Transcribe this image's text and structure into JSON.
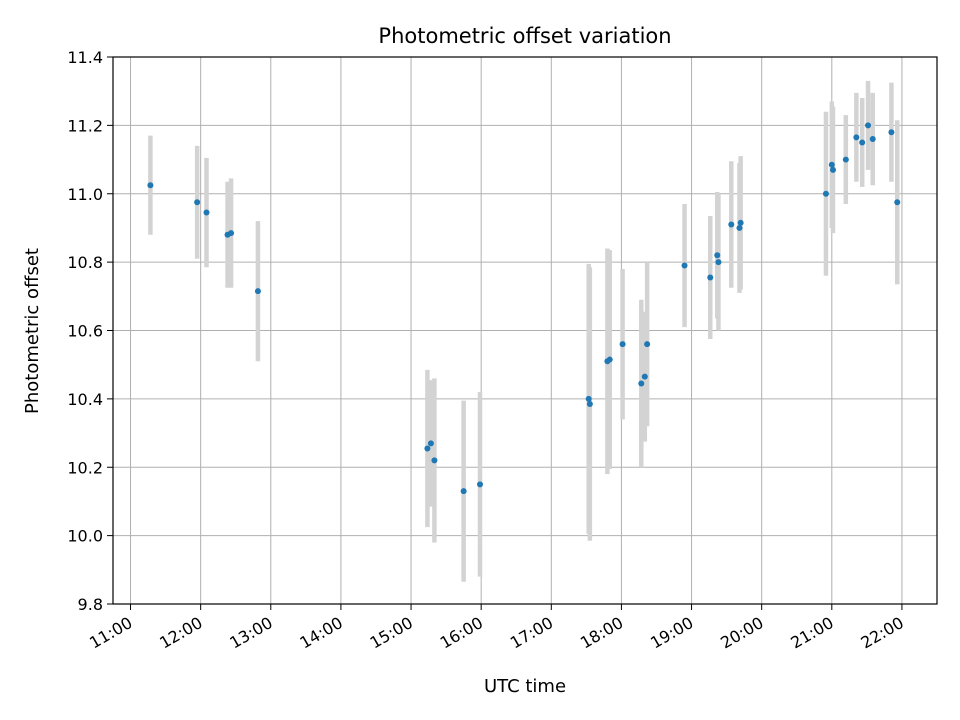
{
  "chart_data": {
    "type": "scatter",
    "title": "Photometric offset variation",
    "xlabel": "UTC time",
    "ylabel": "Photometric offset",
    "x_unit": "UTC time (HH:MM)",
    "xlim": [
      "10:45",
      "22:30"
    ],
    "ylim": [
      9.8,
      11.4
    ],
    "x_ticks": [
      "11:00",
      "12:00",
      "13:00",
      "14:00",
      "15:00",
      "16:00",
      "17:00",
      "18:00",
      "19:00",
      "20:00",
      "21:00",
      "22:00"
    ],
    "y_ticks": [
      "9.8",
      "10.0",
      "10.2",
      "10.4",
      "10.6",
      "10.8",
      "11.0",
      "11.2",
      "11.4"
    ],
    "grid": true,
    "marker_color": "#1f77b4",
    "errorbar_color": "#d3d3d3",
    "points": [
      {
        "x": "11:17",
        "y": 11.025,
        "err": 0.145
      },
      {
        "x": "11:57",
        "y": 10.975,
        "err": 0.165
      },
      {
        "x": "12:05",
        "y": 10.945,
        "err": 0.16
      },
      {
        "x": "12:23",
        "y": 10.88,
        "err": 0.155
      },
      {
        "x": "12:26",
        "y": 10.885,
        "err": 0.16
      },
      {
        "x": "12:49",
        "y": 10.715,
        "err": 0.205
      },
      {
        "x": "15:14",
        "y": 10.255,
        "err": 0.23
      },
      {
        "x": "15:17",
        "y": 10.27,
        "err": 0.185
      },
      {
        "x": "15:20",
        "y": 10.22,
        "err": 0.24
      },
      {
        "x": "15:45",
        "y": 10.13,
        "err": 0.265
      },
      {
        "x": "15:59",
        "y": 10.15,
        "err": 0.27
      },
      {
        "x": "17:32",
        "y": 10.4,
        "err": 0.395
      },
      {
        "x": "17:33",
        "y": 10.385,
        "err": 0.4
      },
      {
        "x": "17:48",
        "y": 10.51,
        "err": 0.33
      },
      {
        "x": "17:50",
        "y": 10.515,
        "err": 0.32
      },
      {
        "x": "18:01",
        "y": 10.56,
        "err": 0.22
      },
      {
        "x": "18:17",
        "y": 10.445,
        "err": 0.245
      },
      {
        "x": "18:20",
        "y": 10.465,
        "err": 0.19
      },
      {
        "x": "18:22",
        "y": 10.56,
        "err": 0.24
      },
      {
        "x": "18:54",
        "y": 10.79,
        "err": 0.18
      },
      {
        "x": "19:16",
        "y": 10.755,
        "err": 0.18
      },
      {
        "x": "19:22",
        "y": 10.82,
        "err": 0.185
      },
      {
        "x": "19:23",
        "y": 10.8,
        "err": 0.2
      },
      {
        "x": "19:34",
        "y": 10.91,
        "err": 0.185
      },
      {
        "x": "19:41",
        "y": 10.9,
        "err": 0.19
      },
      {
        "x": "19:42",
        "y": 10.915,
        "err": 0.195
      },
      {
        "x": "20:55",
        "y": 11.0,
        "err": 0.24
      },
      {
        "x": "21:00",
        "y": 11.085,
        "err": 0.185
      },
      {
        "x": "21:01",
        "y": 11.07,
        "err": 0.185
      },
      {
        "x": "21:12",
        "y": 11.1,
        "err": 0.13
      },
      {
        "x": "21:21",
        "y": 11.165,
        "err": 0.13
      },
      {
        "x": "21:26",
        "y": 11.15,
        "err": 0.13
      },
      {
        "x": "21:31",
        "y": 11.2,
        "err": 0.13
      },
      {
        "x": "21:35",
        "y": 11.16,
        "err": 0.135
      },
      {
        "x": "21:51",
        "y": 11.18,
        "err": 0.145
      },
      {
        "x": "21:56",
        "y": 10.975,
        "err": 0.24
      }
    ]
  }
}
